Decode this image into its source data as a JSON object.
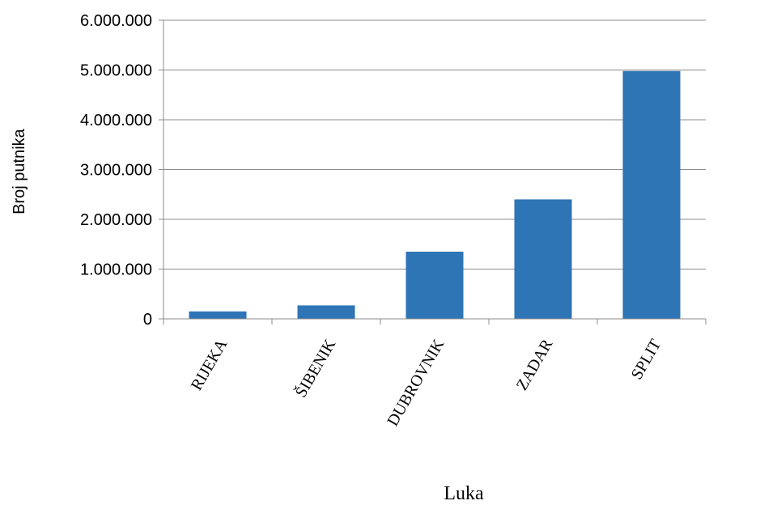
{
  "chart_data": {
    "type": "bar",
    "categories": [
      "RIJEKA",
      "ŠIBENIK",
      "DUBROVNIK",
      "ZADAR",
      "SPLIT"
    ],
    "values": [
      150000,
      270000,
      1350000,
      2400000,
      4980000
    ],
    "xlabel": "Luka",
    "ylabel": "Broj putnika",
    "ylim": [
      0,
      6000000
    ],
    "yticks": [
      0,
      1000000,
      2000000,
      3000000,
      4000000,
      5000000,
      6000000
    ],
    "ytick_labels": [
      "0",
      "1.000.000",
      "2.000.000",
      "3.000.000",
      "4.000.000",
      "5.000.000",
      "6.000.000"
    ],
    "grid": true,
    "legend": "none",
    "colors": {
      "bar": "#2e75b6",
      "grid": "#8c8c8c",
      "axis": "#8c8c8c"
    }
  }
}
